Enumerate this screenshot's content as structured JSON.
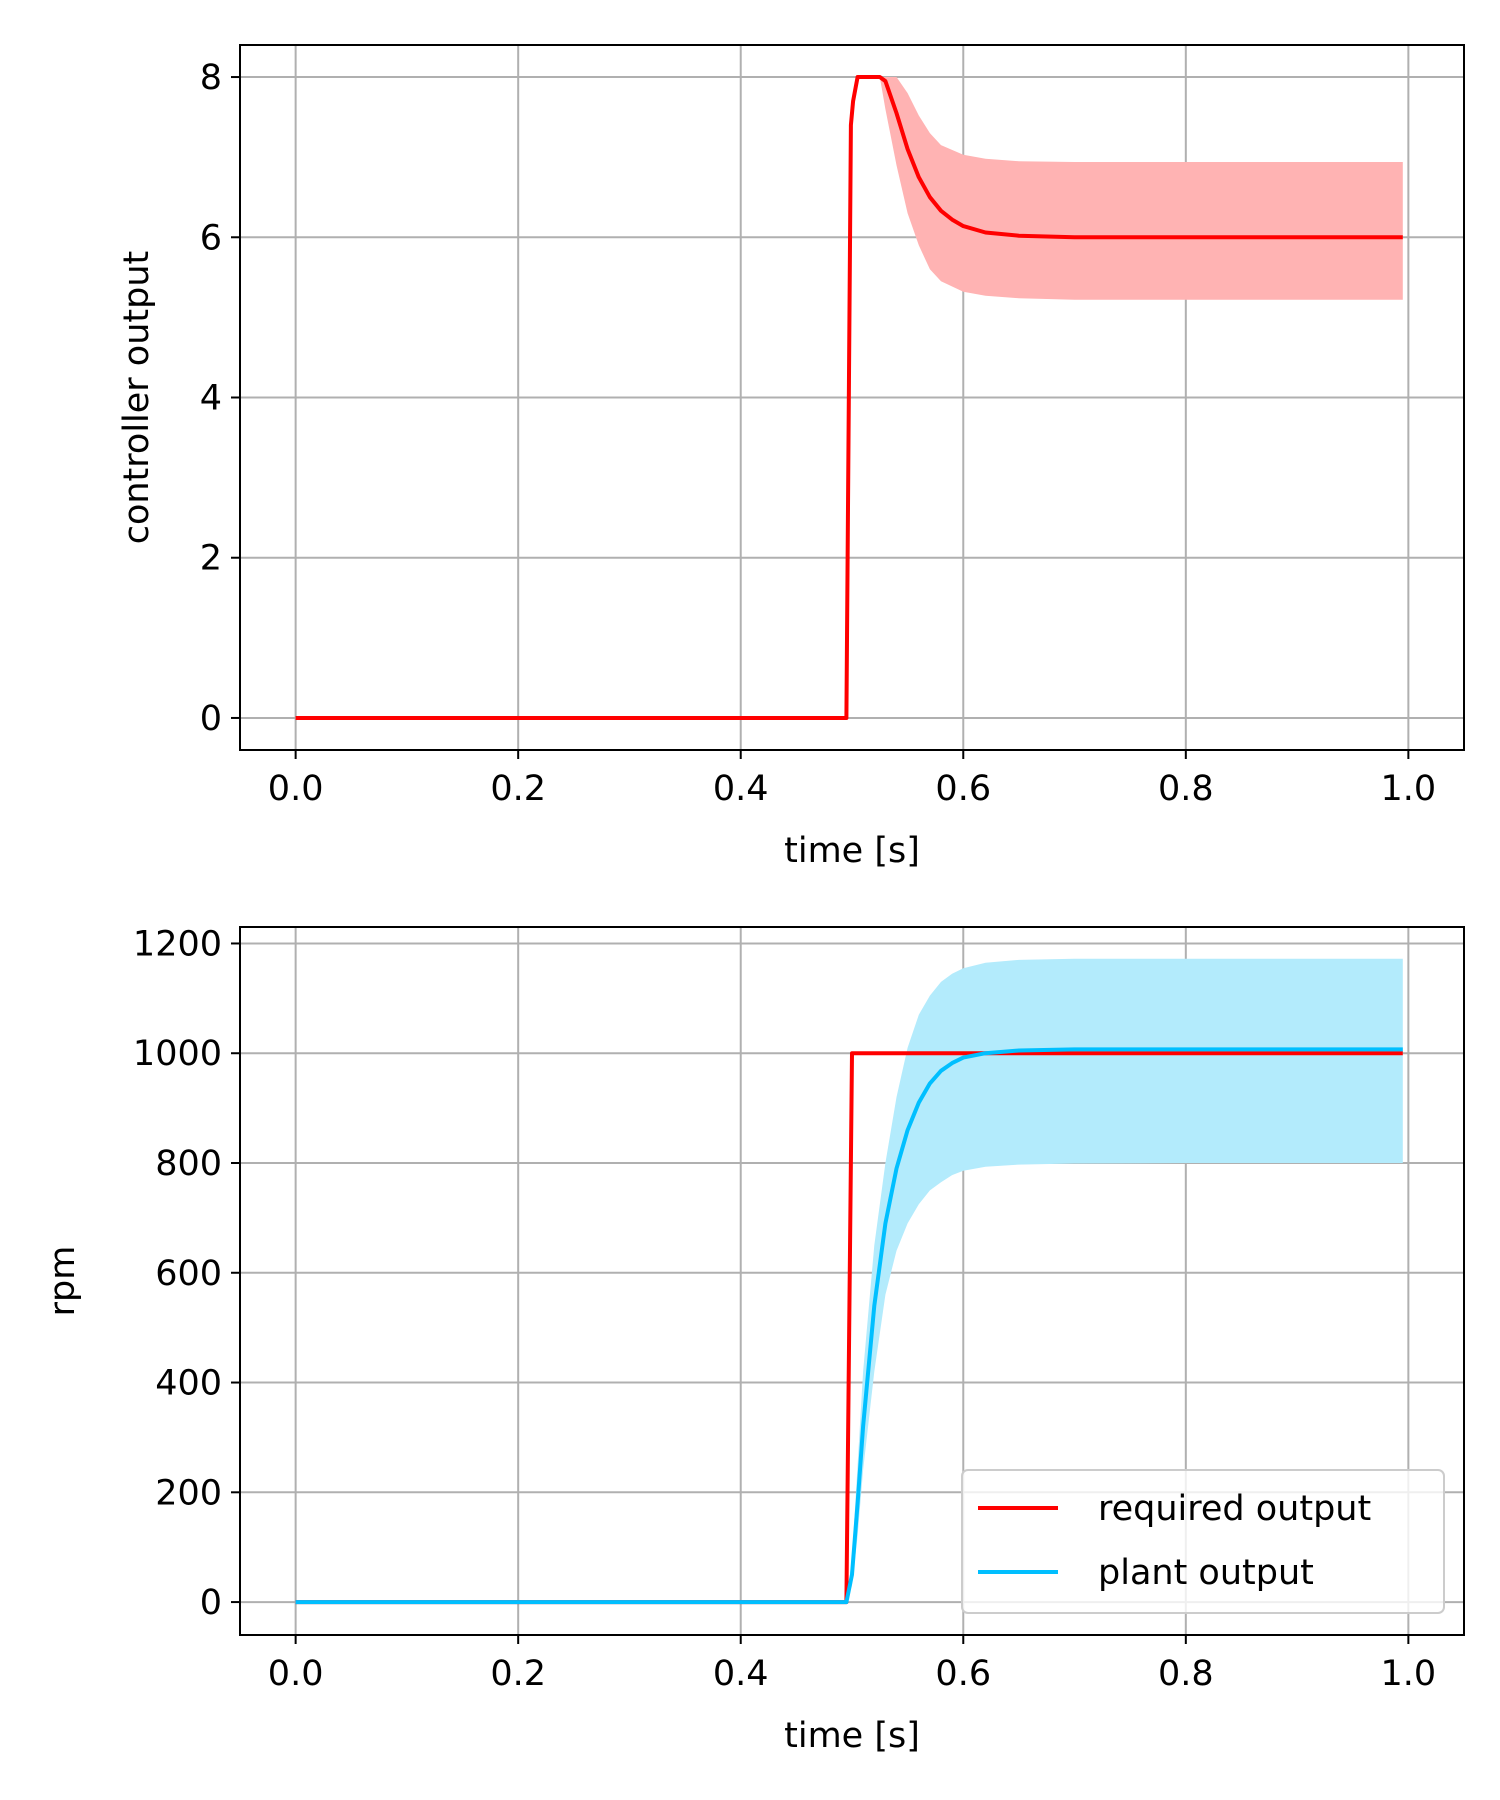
{
  "chart_data": [
    {
      "type": "line",
      "xlabel": "time [s]",
      "ylabel": "controller output",
      "xlim": [
        -0.05,
        1.05
      ],
      "ylim": [
        -0.4,
        8.4
      ],
      "xticks": [
        "0.0",
        "0.2",
        "0.4",
        "0.6",
        "0.8",
        "1.0"
      ],
      "yticks": [
        "0",
        "2",
        "4",
        "6",
        "8"
      ],
      "grid": true,
      "legend": null,
      "series": [
        {
          "color": "#ff0000",
          "x": [
            0.0,
            0.495,
            0.499,
            0.501,
            0.505,
            0.51,
            0.52,
            0.525,
            0.53,
            0.54,
            0.55,
            0.56,
            0.57,
            0.58,
            0.59,
            0.6,
            0.62,
            0.65,
            0.7,
            0.8,
            0.9,
            0.995
          ],
          "y": [
            0.0,
            0.0,
            7.4,
            7.7,
            8.0,
            8.0,
            8.0,
            8.0,
            7.95,
            7.55,
            7.1,
            6.75,
            6.5,
            6.33,
            6.22,
            6.14,
            6.06,
            6.02,
            6.0,
            6.0,
            6.0,
            6.0
          ],
          "band": {
            "color": "#ffb3b3",
            "x": [
              0.525,
              0.53,
              0.54,
              0.55,
              0.56,
              0.57,
              0.58,
              0.6,
              0.62,
              0.65,
              0.7,
              0.8,
              0.9,
              0.995
            ],
            "upper": [
              8.0,
              8.0,
              8.0,
              7.8,
              7.52,
              7.3,
              7.15,
              7.03,
              6.98,
              6.95,
              6.94,
              6.94,
              6.94,
              6.94
            ],
            "lower": [
              8.0,
              7.6,
              6.9,
              6.3,
              5.9,
              5.6,
              5.45,
              5.32,
              5.27,
              5.24,
              5.22,
              5.22,
              5.22,
              5.22
            ]
          }
        }
      ]
    },
    {
      "type": "line",
      "xlabel": "time [s]",
      "ylabel": "rpm",
      "xlim": [
        -0.05,
        1.05
      ],
      "ylim": [
        -60,
        1230
      ],
      "xticks": [
        "0.0",
        "0.2",
        "0.4",
        "0.6",
        "0.8",
        "1.0"
      ],
      "yticks": [
        "0",
        "200",
        "400",
        "600",
        "800",
        "1000",
        "1200"
      ],
      "grid": true,
      "legend": "lower-right",
      "series": [
        {
          "name": "required output",
          "color": "#ff0000",
          "x": [
            0.0,
            0.495,
            0.5,
            0.995
          ],
          "y": [
            0,
            0,
            1000,
            1000
          ]
        },
        {
          "name": "plant output",
          "color": "#00bfff",
          "x": [
            0.0,
            0.495,
            0.5,
            0.505,
            0.51,
            0.52,
            0.53,
            0.54,
            0.55,
            0.56,
            0.57,
            0.58,
            0.59,
            0.6,
            0.62,
            0.65,
            0.7,
            0.8,
            0.9,
            0.995
          ],
          "y": [
            0,
            0,
            50,
            180,
            320,
            540,
            690,
            790,
            860,
            910,
            945,
            968,
            982,
            992,
            1000,
            1005,
            1007,
            1007,
            1007,
            1007
          ],
          "band": {
            "color": "#b3ebfc",
            "x": [
              0.495,
              0.5,
              0.505,
              0.51,
              0.52,
              0.53,
              0.54,
              0.55,
              0.56,
              0.57,
              0.58,
              0.59,
              0.6,
              0.62,
              0.65,
              0.7,
              0.8,
              0.9,
              0.995
            ],
            "upper": [
              0,
              80,
              250,
              420,
              650,
              800,
              920,
              1010,
              1070,
              1105,
              1130,
              1145,
              1155,
              1165,
              1170,
              1172,
              1172,
              1172,
              1172
            ],
            "lower": [
              0,
              30,
              120,
              240,
              420,
              560,
              640,
              690,
              725,
              750,
              765,
              778,
              786,
              793,
              797,
              799,
              800,
              800,
              800
            ]
          }
        }
      ]
    }
  ]
}
